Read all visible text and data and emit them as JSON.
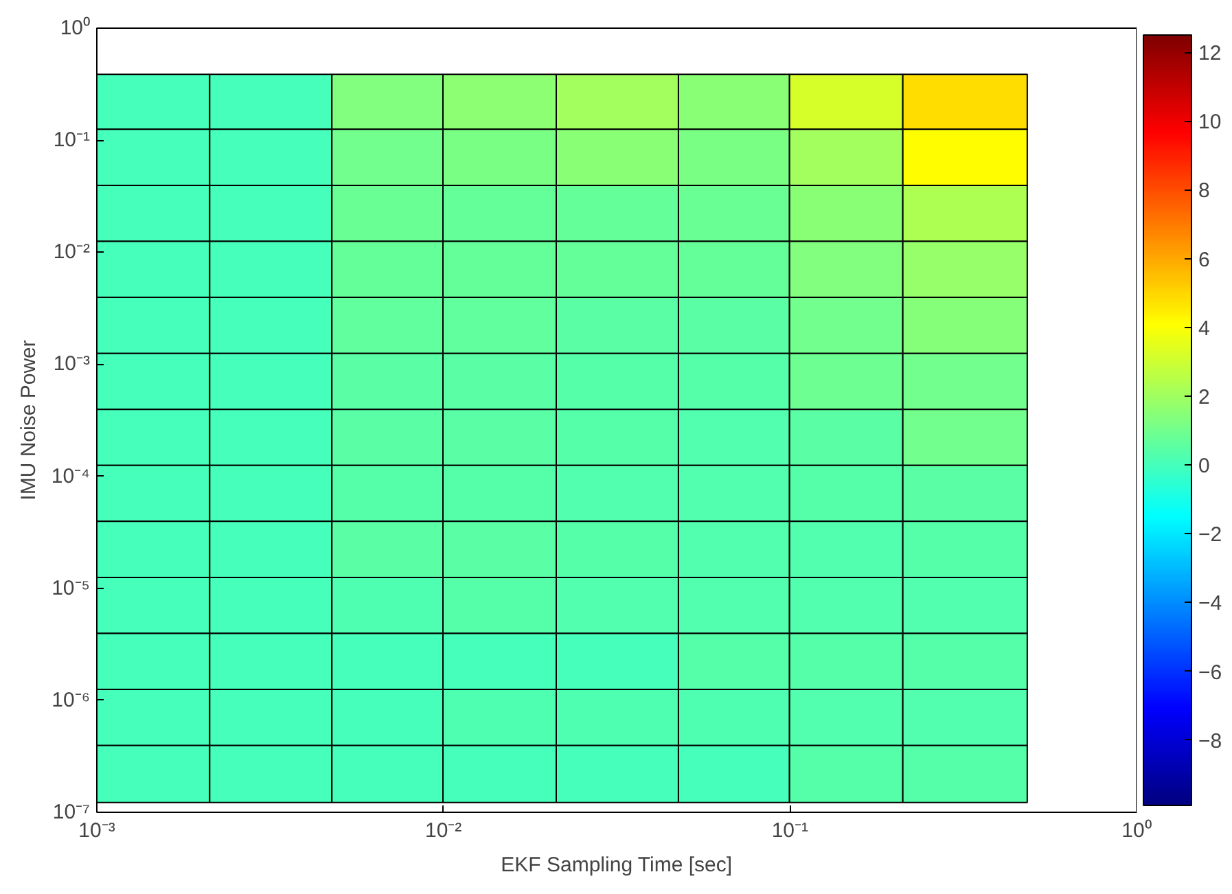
{
  "chart_data": {
    "type": "heatmap",
    "xlabel": "EKF Sampling Time [sec]",
    "ylabel": "IMU Noise Power",
    "x": [
      0.0014,
      0.0032,
      0.0071,
      0.014,
      0.032,
      0.071,
      0.14,
      0.32
    ],
    "y": [
      0.22,
      0.071,
      0.022,
      0.0071,
      0.0022,
      0.00071,
      0.00022,
      7.1e-05,
      2.2e-05,
      7.1e-06,
      2.2e-06,
      7.1e-07,
      2.2e-07
    ],
    "cells": [
      [
        0,
        0,
        1.3,
        1.6,
        2.0,
        1.5,
        3.2,
        4.8
      ],
      [
        0,
        0,
        1.0,
        1.2,
        1.5,
        1.2,
        2.0,
        4.1
      ],
      [
        0,
        0,
        0.8,
        0.7,
        0.7,
        0.8,
        1.5,
        2.3
      ],
      [
        0,
        0,
        0.7,
        0.7,
        0.7,
        0.7,
        1.3,
        1.8
      ],
      [
        0,
        0,
        0.6,
        0.6,
        0.5,
        0.5,
        1.0,
        1.4
      ],
      [
        0,
        0,
        0.5,
        0.5,
        0.4,
        0.4,
        0.9,
        1.0
      ],
      [
        0,
        0,
        0.5,
        0.5,
        0.4,
        0.3,
        0.5,
        1.0
      ],
      [
        0,
        0,
        0.4,
        0.4,
        0.3,
        0.3,
        0.4,
        0.5
      ],
      [
        0,
        0,
        0.5,
        0.5,
        0.4,
        0.3,
        0.3,
        0.4
      ],
      [
        0,
        0,
        0.2,
        0.4,
        0.3,
        0.3,
        0.3,
        0.3
      ],
      [
        0,
        0,
        0,
        0,
        0,
        0.4,
        0.4,
        0.4
      ],
      [
        0,
        0,
        0,
        0.2,
        0.2,
        0.2,
        0.3,
        0.3
      ],
      [
        0,
        0,
        0,
        0,
        0,
        0,
        0.4,
        0.4
      ]
    ],
    "log": "xy",
    "xlim": [
      0.001,
      1
    ],
    "ylim": [
      1e-07,
      1
    ],
    "xticks": [
      {
        "value": 0.001,
        "label": "10⁻³"
      },
      {
        "value": 0.01,
        "label": "10⁻²"
      },
      {
        "value": 0.1,
        "label": "10⁻¹"
      },
      {
        "value": 1,
        "label": "10⁰"
      }
    ],
    "yticks": [
      {
        "value": 1e-07,
        "label": "10⁻⁷"
      },
      {
        "value": 1e-06,
        "label": "10⁻⁶"
      },
      {
        "value": 1e-05,
        "label": "10⁻⁵"
      },
      {
        "value": 0.0001,
        "label": "10⁻⁴"
      },
      {
        "value": 0.001,
        "label": "10⁻³"
      },
      {
        "value": 0.01,
        "label": "10⁻²"
      },
      {
        "value": 0.1,
        "label": "10⁻¹"
      },
      {
        "value": 1,
        "label": "10⁰"
      }
    ],
    "clim": [
      -9.9,
      12.5
    ],
    "cticks": [
      -8,
      -6,
      -4,
      -2,
      0,
      2,
      4,
      6,
      8,
      10,
      12
    ]
  }
}
